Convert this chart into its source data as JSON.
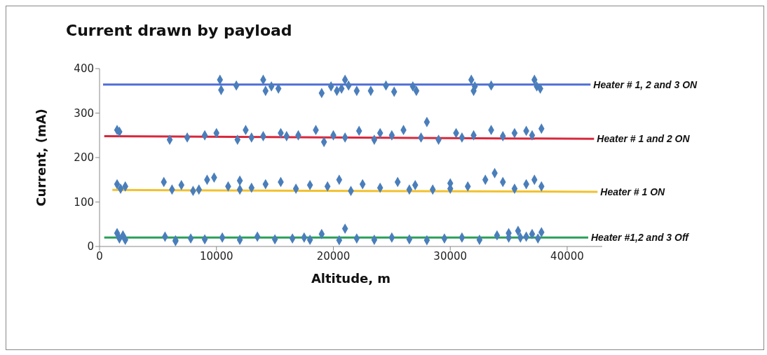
{
  "chart_data": {
    "type": "scatter",
    "title": "Current drawn by payload",
    "xlabel": "Altitude, m",
    "ylabel": "Current, (mA)",
    "xlim": [
      0,
      43000
    ],
    "xticks": [
      0,
      10000,
      20000,
      30000,
      40000
    ],
    "ylim": [
      0,
      400
    ],
    "yticks": [
      0,
      100,
      200,
      300,
      400
    ],
    "grid": false,
    "legend": false,
    "series": [
      {
        "color": "#4a7ebb",
        "marker": "diamond",
        "x": [
          1500,
          1700,
          2000,
          2200,
          5600,
          6500,
          7800,
          9000,
          10500,
          12000,
          13500,
          15000,
          16500,
          18000,
          19000,
          20500,
          21000,
          22000,
          23500,
          25000,
          26500,
          28000,
          29500,
          31000,
          32500,
          34000,
          35000,
          35800,
          36500,
          37000,
          37500,
          37800,
          1500,
          1800,
          2200,
          5500,
          6200,
          7000,
          8000,
          9200,
          9800,
          11000,
          12000,
          13000,
          14200,
          15500,
          16800,
          18000,
          19500,
          20500,
          21500,
          22500,
          24000,
          25500,
          27000,
          28500,
          30000,
          31500,
          33000,
          33800,
          34500,
          35500,
          36500,
          37200,
          37800,
          6000,
          7500,
          9000,
          10000,
          11800,
          12500,
          14000,
          15500,
          17000,
          18500,
          19200,
          20000,
          21000,
          22200,
          23500,
          25000,
          26000,
          27500,
          28000,
          29000,
          30500,
          32000,
          33500,
          34500,
          35500,
          36500,
          37000,
          37800,
          1500,
          1700,
          10300,
          10400,
          11700,
          14000,
          14200,
          14700,
          15300,
          19000,
          19800,
          20300,
          20700,
          21000,
          21300,
          22000,
          23200,
          24500,
          25200,
          26800,
          27100,
          31800,
          32000,
          32100,
          33500,
          37200,
          37400,
          37700,
          6500,
          12000,
          16000,
          24000,
          30000,
          36000,
          8500,
          13000,
          17500,
          26500,
          31000,
          35000
        ],
        "values": [
          30,
          18,
          25,
          15,
          22,
          14,
          18,
          16,
          20,
          15,
          22,
          16,
          18,
          15,
          28,
          14,
          40,
          18,
          15,
          20,
          16,
          14,
          18,
          20,
          15,
          25,
          30,
          35,
          22,
          28,
          18,
          32,
          140,
          130,
          135,
          145,
          128,
          138,
          125,
          150,
          155,
          135,
          148,
          132,
          140,
          145,
          130,
          138,
          135,
          150,
          125,
          140,
          132,
          145,
          138,
          128,
          142,
          135,
          150,
          165,
          145,
          130,
          140,
          150,
          135,
          240,
          245,
          250,
          255,
          240,
          262,
          248,
          255,
          250,
          262,
          235,
          250,
          245,
          260,
          240,
          250,
          262,
          245,
          280,
          240,
          255,
          250,
          262,
          248,
          255,
          260,
          250,
          265,
          262,
          258,
          375,
          352,
          362,
          375,
          350,
          360,
          355,
          345,
          360,
          350,
          355,
          375,
          362,
          350,
          350,
          362,
          348,
          360,
          350,
          375,
          350,
          360,
          362,
          375,
          360,
          355,
          12,
          128,
          248,
          255,
          130,
          20,
          128,
          245,
          20,
          128,
          245,
          20
        ]
      },
      {
        "type": "line",
        "name": "Heater # 1, 2 and 3 ON",
        "color": "#4f6fd6",
        "x": [
          300,
          42000
        ],
        "values": [
          364,
          364
        ]
      },
      {
        "type": "line",
        "name": "Heater # 1 and 2 ON",
        "color": "#d8283c",
        "x": [
          400,
          42300
        ],
        "values": [
          248,
          242
        ]
      },
      {
        "type": "line",
        "name": "Heater # 1 ON",
        "color": "#f2c12e",
        "x": [
          1100,
          42600
        ],
        "values": [
          127,
          123
        ]
      },
      {
        "type": "line",
        "name": "Heater #1,2 and 3 Off",
        "color": "#2aa05a",
        "x": [
          400,
          41800
        ],
        "values": [
          20,
          20
        ]
      }
    ]
  }
}
